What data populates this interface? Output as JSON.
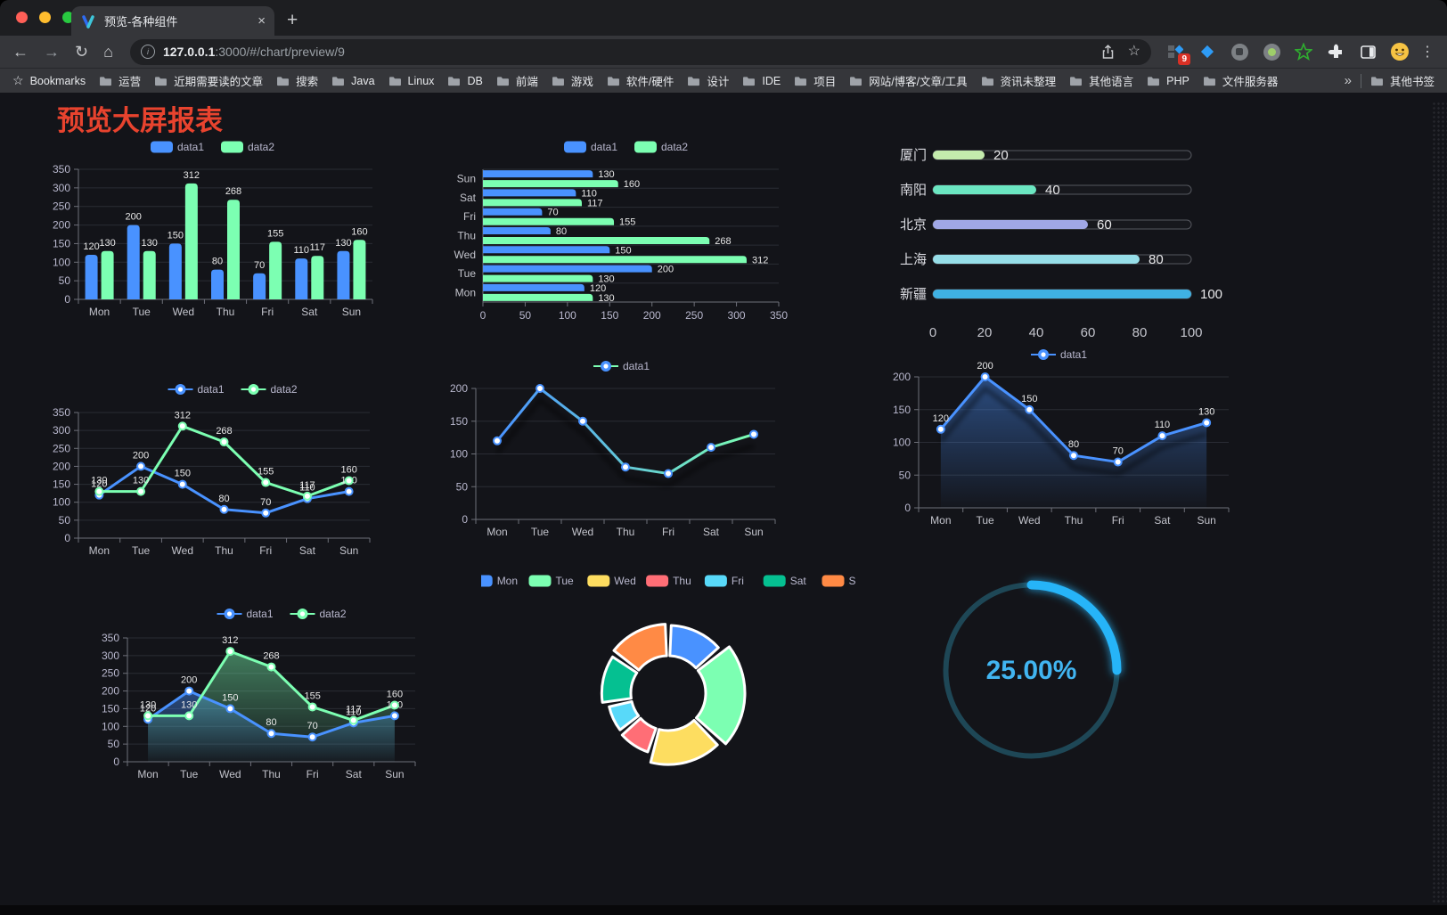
{
  "browser": {
    "tab": {
      "title": "预览-各种组件",
      "close": "×",
      "new_tab": "+"
    },
    "address": {
      "url_host": "127.0.0.1",
      "url_rest": ":3000/#/chart/preview/9"
    },
    "icons": {
      "back": "←",
      "forward": "→",
      "reload": "↻",
      "home": "⌂",
      "info": "i",
      "bookmark_star": "☆",
      "kebab": "⋮",
      "bookmarks_root_star": "☆"
    },
    "extensions": {
      "badge_count": "9"
    },
    "bookmarks_bar": {
      "root_label": "Bookmarks",
      "folders": [
        "运营",
        "近期需要读的文章",
        "搜索",
        "Java",
        "Linux",
        "DB",
        "前端",
        "游戏",
        "软件/硬件",
        "设计",
        "IDE",
        "项目",
        "网站/博客/文章/工具",
        "资讯未整理",
        "其他语言",
        "PHP",
        "文件服务器"
      ],
      "overflow_chevron": "»",
      "other_bookmarks": "其他书签"
    }
  },
  "page": {
    "title": "预览大屏报表",
    "title_color": "#e8432e"
  },
  "chart_data": [
    {
      "name": "grouped-bar",
      "type": "bar",
      "categories": [
        "Mon",
        "Tue",
        "Wed",
        "Thu",
        "Fri",
        "Sat",
        "Sun"
      ],
      "series": [
        {
          "name": "data1",
          "color": "#4992ff",
          "values": [
            120,
            200,
            150,
            80,
            70,
            110,
            130
          ]
        },
        {
          "name": "data2",
          "color": "#7cffb2",
          "values": [
            130,
            130,
            312,
            268,
            155,
            117,
            160
          ]
        }
      ],
      "ylim": [
        0,
        350
      ],
      "ystep": 50,
      "value_labels": true,
      "legend_position": "top",
      "grid": true
    },
    {
      "name": "horizontal-bar",
      "type": "bar-horizontal",
      "categories": [
        "Mon",
        "Tue",
        "Wed",
        "Thu",
        "Fri",
        "Sat",
        "Sun"
      ],
      "display_order_top_to_bottom": [
        "Sun",
        "Sat",
        "Fri",
        "Thu",
        "Wed",
        "Tue",
        "Mon"
      ],
      "series": [
        {
          "name": "data1",
          "color": "#4992ff",
          "values": [
            120,
            200,
            150,
            80,
            70,
            110,
            130
          ]
        },
        {
          "name": "data2",
          "color": "#7cffb2",
          "values": [
            130,
            130,
            312,
            268,
            155,
            117,
            160
          ]
        }
      ],
      "xlim": [
        0,
        350
      ],
      "xstep": 50,
      "value_labels": true,
      "legend_position": "top",
      "grid": true
    },
    {
      "name": "city-progress",
      "type": "progress-bars",
      "items": [
        {
          "label": "厦门",
          "value": 20,
          "color": "#c4ebad"
        },
        {
          "label": "南阳",
          "value": 40,
          "color": "#6be6c1"
        },
        {
          "label": "北京",
          "value": 60,
          "color": "#a0a7e6"
        },
        {
          "label": "上海",
          "value": 80,
          "color": "#96dee8"
        },
        {
          "label": "新疆",
          "value": 100,
          "color": "#3fb1e3"
        }
      ],
      "xlim": [
        0,
        100
      ],
      "xticks": [
        0,
        20,
        40,
        60,
        80,
        100
      ]
    },
    {
      "name": "dual-line",
      "type": "line",
      "categories": [
        "Mon",
        "Tue",
        "Wed",
        "Thu",
        "Fri",
        "Sat",
        "Sun"
      ],
      "series": [
        {
          "name": "data1",
          "color": "#4992ff",
          "values": [
            120,
            200,
            150,
            80,
            70,
            110,
            130
          ]
        },
        {
          "name": "data2",
          "color": "#7cffb2",
          "values": [
            130,
            130,
            312,
            268,
            155,
            117,
            160
          ]
        }
      ],
      "ylim": [
        0,
        350
      ],
      "ystep": 50,
      "value_labels": true,
      "legend_position": "top",
      "grid": true
    },
    {
      "name": "gradient-line",
      "type": "line",
      "categories": [
        "Mon",
        "Tue",
        "Wed",
        "Thu",
        "Fri",
        "Sat",
        "Sun"
      ],
      "series": [
        {
          "name": "data1",
          "color": "#4992ff",
          "gradient": [
            "#4992ff",
            "#7cffb2"
          ],
          "shadow": true,
          "values": [
            120,
            200,
            150,
            80,
            70,
            110,
            130
          ]
        }
      ],
      "ylim": [
        0,
        200
      ],
      "ystep": 50,
      "value_labels": false,
      "legend_position": "top",
      "grid": true
    },
    {
      "name": "area-line",
      "type": "line",
      "categories": [
        "Mon",
        "Tue",
        "Wed",
        "Thu",
        "Fri",
        "Sat",
        "Sun"
      ],
      "series": [
        {
          "name": "data1",
          "color": "#4992ff",
          "area": true,
          "shadow": true,
          "values": [
            120,
            200,
            150,
            80,
            70,
            110,
            130
          ]
        }
      ],
      "ylim": [
        0,
        200
      ],
      "ystep": 50,
      "value_labels": true,
      "legend_position": "top",
      "grid": true
    },
    {
      "name": "dual-line-area",
      "type": "line",
      "categories": [
        "Mon",
        "Tue",
        "Wed",
        "Thu",
        "Fri",
        "Sat",
        "Sun"
      ],
      "series": [
        {
          "name": "data1",
          "color": "#4992ff",
          "area": true,
          "values": [
            120,
            200,
            150,
            80,
            70,
            110,
            130
          ]
        },
        {
          "name": "data2",
          "color": "#7cffb2",
          "area": true,
          "values": [
            130,
            130,
            312,
            268,
            155,
            117,
            160
          ]
        }
      ],
      "ylim": [
        0,
        350
      ],
      "ystep": 50,
      "value_labels": true,
      "legend_position": "top",
      "grid": true
    },
    {
      "name": "weekday-donut",
      "type": "pie",
      "donut": true,
      "legend_position": "top",
      "items": [
        {
          "label": "Mon",
          "value": 120,
          "color": "#4992ff"
        },
        {
          "label": "Tue",
          "value": 200,
          "color": "#7cffb2"
        },
        {
          "label": "Wed",
          "value": 150,
          "color": "#fddd60"
        },
        {
          "label": "Thu",
          "value": 80,
          "color": "#ff6e76"
        },
        {
          "label": "Fri",
          "value": 70,
          "color": "#58d9f9"
        },
        {
          "label": "Sat",
          "value": 110,
          "color": "#05c091"
        },
        {
          "label": "Sun",
          "value": 130,
          "color": "#ff8a45"
        }
      ]
    },
    {
      "name": "percent-gauge",
      "type": "gauge",
      "value": 25,
      "value_label": "25.00%",
      "color": "#28b4f8",
      "track_color": "#1e4756",
      "text_color": "#41b5f1"
    }
  ]
}
